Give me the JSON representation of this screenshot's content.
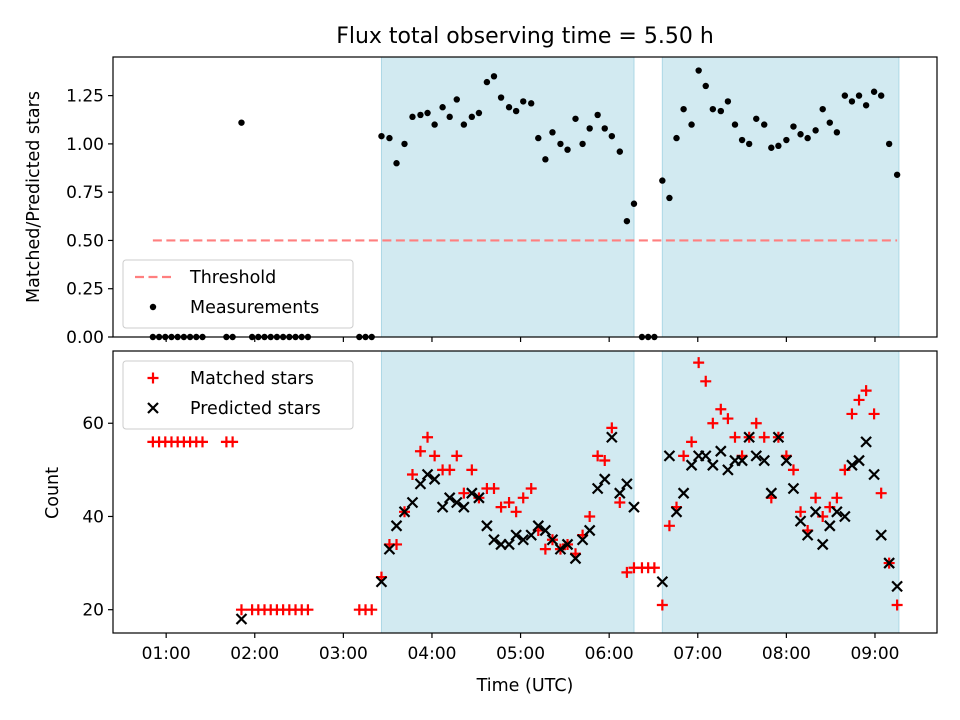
{
  "chart_data": [
    {
      "type": "scatter",
      "title": "Flux total observing time = 5.50 h",
      "xlabel": "",
      "ylabel": "Matched/Predicted stars",
      "x_unit": "hours (UTC)",
      "xlim": [
        0.4,
        9.7
      ],
      "ylim": [
        0.0,
        1.45
      ],
      "yticks": [
        "0.00",
        "0.25",
        "0.50",
        "0.75",
        "1.00",
        "1.25"
      ],
      "yticks_values": [
        0.0,
        0.25,
        0.5,
        0.75,
        1.0,
        1.25
      ],
      "grid": false,
      "legend": {
        "position": "lower-left",
        "entries": [
          "Threshold",
          "Measurements"
        ]
      },
      "threshold": {
        "name": "Threshold",
        "value": 0.5,
        "x_range": [
          0.85,
          9.25
        ],
        "color": "#ff7f7f"
      },
      "shaded_regions": [
        [
          3.43,
          6.28
        ],
        [
          6.6,
          9.27
        ]
      ],
      "shade_color": "#add8e6",
      "series": [
        {
          "name": "Measurements",
          "color": "#000000",
          "points": [
            [
              0.85,
              0
            ],
            [
              0.92,
              0
            ],
            [
              0.99,
              0
            ],
            [
              1.06,
              0
            ],
            [
              1.13,
              0
            ],
            [
              1.2,
              0
            ],
            [
              1.27,
              0
            ],
            [
              1.34,
              0
            ],
            [
              1.41,
              0
            ],
            [
              1.68,
              0
            ],
            [
              1.75,
              0
            ],
            [
              1.85,
              1.11
            ],
            [
              1.97,
              0
            ],
            [
              2.04,
              0
            ],
            [
              2.11,
              0
            ],
            [
              2.18,
              0
            ],
            [
              2.25,
              0
            ],
            [
              2.32,
              0
            ],
            [
              2.39,
              0
            ],
            [
              2.46,
              0
            ],
            [
              2.53,
              0
            ],
            [
              2.6,
              0
            ],
            [
              3.18,
              0
            ],
            [
              3.25,
              0
            ],
            [
              3.32,
              0
            ],
            [
              3.43,
              1.04
            ],
            [
              3.52,
              1.03
            ],
            [
              3.6,
              0.9
            ],
            [
              3.69,
              1.0
            ],
            [
              3.78,
              1.14
            ],
            [
              3.87,
              1.15
            ],
            [
              3.95,
              1.16
            ],
            [
              4.03,
              1.1
            ],
            [
              4.12,
              1.19
            ],
            [
              4.2,
              1.14
            ],
            [
              4.28,
              1.23
            ],
            [
              4.36,
              1.1
            ],
            [
              4.45,
              1.14
            ],
            [
              4.53,
              1.16
            ],
            [
              4.62,
              1.32
            ],
            [
              4.7,
              1.35
            ],
            [
              4.78,
              1.24
            ],
            [
              4.87,
              1.19
            ],
            [
              4.95,
              1.17
            ],
            [
              5.03,
              1.22
            ],
            [
              5.12,
              1.21
            ],
            [
              5.2,
              1.03
            ],
            [
              5.28,
              0.92
            ],
            [
              5.36,
              1.06
            ],
            [
              5.45,
              1.0
            ],
            [
              5.53,
              0.97
            ],
            [
              5.62,
              1.13
            ],
            [
              5.7,
              1.0
            ],
            [
              5.78,
              1.08
            ],
            [
              5.87,
              1.15
            ],
            [
              5.95,
              1.08
            ],
            [
              6.03,
              1.04
            ],
            [
              6.12,
              0.96
            ],
            [
              6.2,
              0.6
            ],
            [
              6.28,
              0.69
            ],
            [
              6.37,
              0
            ],
            [
              6.44,
              0
            ],
            [
              6.51,
              0
            ],
            [
              6.6,
              0.81
            ],
            [
              6.68,
              0.72
            ],
            [
              6.76,
              1.03
            ],
            [
              6.84,
              1.18
            ],
            [
              6.93,
              1.1
            ],
            [
              7.01,
              1.38
            ],
            [
              7.09,
              1.3
            ],
            [
              7.17,
              1.18
            ],
            [
              7.26,
              1.17
            ],
            [
              7.34,
              1.22
            ],
            [
              7.42,
              1.1
            ],
            [
              7.5,
              1.02
            ],
            [
              7.58,
              1.0
            ],
            [
              7.66,
              1.13
            ],
            [
              7.75,
              1.1
            ],
            [
              7.83,
              0.98
            ],
            [
              7.91,
              0.99
            ],
            [
              8.0,
              1.02
            ],
            [
              8.08,
              1.09
            ],
            [
              8.16,
              1.05
            ],
            [
              8.24,
              1.03
            ],
            [
              8.33,
              1.07
            ],
            [
              8.41,
              1.18
            ],
            [
              8.49,
              1.11
            ],
            [
              8.57,
              1.06
            ],
            [
              8.66,
              1.25
            ],
            [
              8.74,
              1.22
            ],
            [
              8.82,
              1.25
            ],
            [
              8.9,
              1.2
            ],
            [
              8.99,
              1.27
            ],
            [
              9.07,
              1.25
            ],
            [
              9.16,
              1.0
            ],
            [
              9.25,
              0.84
            ]
          ]
        }
      ]
    },
    {
      "type": "scatter",
      "title": "",
      "xlabel": "Time (UTC)",
      "ylabel": "Count",
      "x_unit": "hours (UTC)",
      "xlim": [
        0.4,
        9.7
      ],
      "ylim": [
        15.0,
        75.5
      ],
      "xticks": [
        "01:00",
        "02:00",
        "03:00",
        "04:00",
        "05:00",
        "06:00",
        "07:00",
        "08:00",
        "09:00"
      ],
      "xticks_values": [
        1,
        2,
        3,
        4,
        5,
        6,
        7,
        8,
        9
      ],
      "yticks": [
        "20",
        "40",
        "60"
      ],
      "yticks_values": [
        20,
        40,
        60
      ],
      "grid": false,
      "legend": {
        "position": "top-left",
        "entries": [
          "Matched stars",
          "Predicted stars"
        ]
      },
      "shaded_regions": [
        [
          3.43,
          6.28
        ],
        [
          6.6,
          9.27
        ]
      ],
      "shade_color": "#add8e6",
      "series": [
        {
          "name": "Matched stars",
          "marker": "plus",
          "color": "#ff0000",
          "points": [
            [
              0.85,
              56
            ],
            [
              0.92,
              56
            ],
            [
              0.99,
              56
            ],
            [
              1.06,
              56
            ],
            [
              1.13,
              56
            ],
            [
              1.2,
              56
            ],
            [
              1.27,
              56
            ],
            [
              1.34,
              56
            ],
            [
              1.41,
              56
            ],
            [
              1.68,
              56
            ],
            [
              1.75,
              56
            ],
            [
              1.85,
              20
            ],
            [
              1.97,
              20
            ],
            [
              2.04,
              20
            ],
            [
              2.11,
              20
            ],
            [
              2.18,
              20
            ],
            [
              2.25,
              20
            ],
            [
              2.32,
              20
            ],
            [
              2.39,
              20
            ],
            [
              2.46,
              20
            ],
            [
              2.53,
              20
            ],
            [
              2.6,
              20
            ],
            [
              3.18,
              20
            ],
            [
              3.25,
              20
            ],
            [
              3.32,
              20
            ],
            [
              3.43,
              27
            ],
            [
              3.52,
              34
            ],
            [
              3.6,
              34
            ],
            [
              3.69,
              41
            ],
            [
              3.78,
              49
            ],
            [
              3.87,
              54
            ],
            [
              3.95,
              57
            ],
            [
              4.03,
              53
            ],
            [
              4.12,
              50
            ],
            [
              4.2,
              50
            ],
            [
              4.28,
              53
            ],
            [
              4.36,
              45
            ],
            [
              4.45,
              50
            ],
            [
              4.53,
              44
            ],
            [
              4.62,
              46
            ],
            [
              4.7,
              46
            ],
            [
              4.78,
              42
            ],
            [
              4.87,
              43
            ],
            [
              4.95,
              41
            ],
            [
              5.03,
              44
            ],
            [
              5.12,
              46
            ],
            [
              5.2,
              37
            ],
            [
              5.28,
              33
            ],
            [
              5.36,
              35
            ],
            [
              5.45,
              33
            ],
            [
              5.53,
              34
            ],
            [
              5.62,
              32
            ],
            [
              5.7,
              36
            ],
            [
              5.78,
              40
            ],
            [
              5.87,
              53
            ],
            [
              5.95,
              52
            ],
            [
              6.03,
              59
            ],
            [
              6.12,
              43
            ],
            [
              6.2,
              28
            ],
            [
              6.28,
              29
            ],
            [
              6.37,
              29
            ],
            [
              6.44,
              29
            ],
            [
              6.51,
              29
            ],
            [
              6.6,
              21
            ],
            [
              6.68,
              38
            ],
            [
              6.76,
              42
            ],
            [
              6.84,
              53
            ],
            [
              6.93,
              56
            ],
            [
              7.01,
              73
            ],
            [
              7.09,
              69
            ],
            [
              7.17,
              60
            ],
            [
              7.26,
              63
            ],
            [
              7.34,
              61
            ],
            [
              7.42,
              57
            ],
            [
              7.5,
              53
            ],
            [
              7.58,
              57
            ],
            [
              7.66,
              60
            ],
            [
              7.75,
              57
            ],
            [
              7.83,
              44
            ],
            [
              7.91,
              57
            ],
            [
              8.0,
              53
            ],
            [
              8.08,
              50
            ],
            [
              8.16,
              41
            ],
            [
              8.24,
              37
            ],
            [
              8.33,
              44
            ],
            [
              8.41,
              40
            ],
            [
              8.49,
              42
            ],
            [
              8.57,
              44
            ],
            [
              8.66,
              50
            ],
            [
              8.74,
              62
            ],
            [
              8.82,
              65
            ],
            [
              8.9,
              67
            ],
            [
              8.99,
              62
            ],
            [
              9.07,
              45
            ],
            [
              9.16,
              30
            ],
            [
              9.25,
              21
            ]
          ]
        },
        {
          "name": "Predicted stars",
          "marker": "x",
          "color": "#000000",
          "points": [
            [
              1.85,
              18
            ],
            [
              3.43,
              26
            ],
            [
              3.52,
              33
            ],
            [
              3.6,
              38
            ],
            [
              3.69,
              41
            ],
            [
              3.78,
              43
            ],
            [
              3.87,
              47
            ],
            [
              3.95,
              49
            ],
            [
              4.03,
              48
            ],
            [
              4.12,
              42
            ],
            [
              4.2,
              44
            ],
            [
              4.28,
              43
            ],
            [
              4.36,
              42
            ],
            [
              4.45,
              45
            ],
            [
              4.53,
              44
            ],
            [
              4.62,
              38
            ],
            [
              4.7,
              35
            ],
            [
              4.78,
              34
            ],
            [
              4.87,
              34
            ],
            [
              4.95,
              36
            ],
            [
              5.03,
              35
            ],
            [
              5.12,
              36
            ],
            [
              5.2,
              38
            ],
            [
              5.28,
              37
            ],
            [
              5.36,
              35
            ],
            [
              5.45,
              33
            ],
            [
              5.53,
              34
            ],
            [
              5.62,
              31
            ],
            [
              5.7,
              35
            ],
            [
              5.78,
              37
            ],
            [
              5.87,
              46
            ],
            [
              5.95,
              48
            ],
            [
              6.03,
              57
            ],
            [
              6.12,
              45
            ],
            [
              6.2,
              47
            ],
            [
              6.28,
              42
            ],
            [
              6.6,
              26
            ],
            [
              6.68,
              53
            ],
            [
              6.76,
              41
            ],
            [
              6.84,
              45
            ],
            [
              6.93,
              51
            ],
            [
              7.01,
              53
            ],
            [
              7.09,
              53
            ],
            [
              7.17,
              51
            ],
            [
              7.26,
              54
            ],
            [
              7.34,
              50
            ],
            [
              7.42,
              52
            ],
            [
              7.5,
              52
            ],
            [
              7.58,
              57
            ],
            [
              7.66,
              53
            ],
            [
              7.75,
              52
            ],
            [
              7.83,
              45
            ],
            [
              7.91,
              57
            ],
            [
              8.0,
              52
            ],
            [
              8.08,
              46
            ],
            [
              8.16,
              39
            ],
            [
              8.24,
              36
            ],
            [
              8.33,
              41
            ],
            [
              8.41,
              34
            ],
            [
              8.49,
              38
            ],
            [
              8.57,
              41
            ],
            [
              8.66,
              40
            ],
            [
              8.74,
              51
            ],
            [
              8.82,
              52
            ],
            [
              8.9,
              56
            ],
            [
              8.99,
              49
            ],
            [
              9.07,
              36
            ],
            [
              9.16,
              30
            ],
            [
              9.25,
              25
            ]
          ]
        }
      ]
    }
  ]
}
